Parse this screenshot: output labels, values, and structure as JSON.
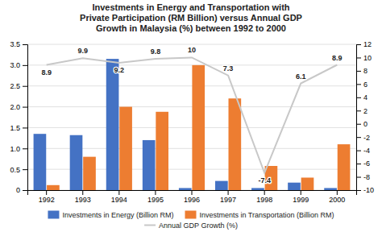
{
  "chart_data": {
    "type": "bar",
    "title": "Investments in Energy and Transportation with\nPrivate Participation (RM Billion) versus Annual GDP\nGrowth in Malaysia (%) between 1992 to 2000",
    "categories": [
      "1992",
      "1993",
      "1994",
      "1995",
      "1996",
      "1997",
      "1998",
      "1999",
      "2000"
    ],
    "series": [
      {
        "name": "Investments in Energy (Billion RM)",
        "color": "#4472C4",
        "values": [
          1.35,
          1.32,
          3.15,
          1.2,
          0.05,
          0.22,
          0.05,
          0.18,
          0.05
        ]
      },
      {
        "name": "Investments in Transportation (Billion RM)",
        "color": "#ED7D31",
        "values": [
          0.12,
          0.8,
          2.0,
          1.88,
          3.0,
          2.2,
          0.58,
          0.3,
          1.1
        ]
      },
      {
        "name": "Annual GDP Growth (%)",
        "type": "line",
        "axis": "y2",
        "color": "#C8C8C8",
        "data_labels": true,
        "values": [
          8.9,
          9.9,
          9.2,
          9.8,
          10,
          7.3,
          -7.4,
          6.1,
          8.9
        ]
      }
    ],
    "ylim": [
      0,
      3.5
    ],
    "yticks": [
      0,
      0.5,
      {
        "value": 1,
        "label": "1.0"
      },
      1.5,
      {
        "value": 2,
        "label": "2.0"
      },
      2.5,
      {
        "value": 3,
        "label": "3.0"
      },
      3.5
    ],
    "y2lim": [
      -10,
      12
    ],
    "y2ticks": [
      -10,
      -8,
      -6,
      -4,
      -2,
      0,
      2,
      4,
      6,
      8,
      10,
      12
    ],
    "grid": true,
    "legend": "bottom"
  }
}
